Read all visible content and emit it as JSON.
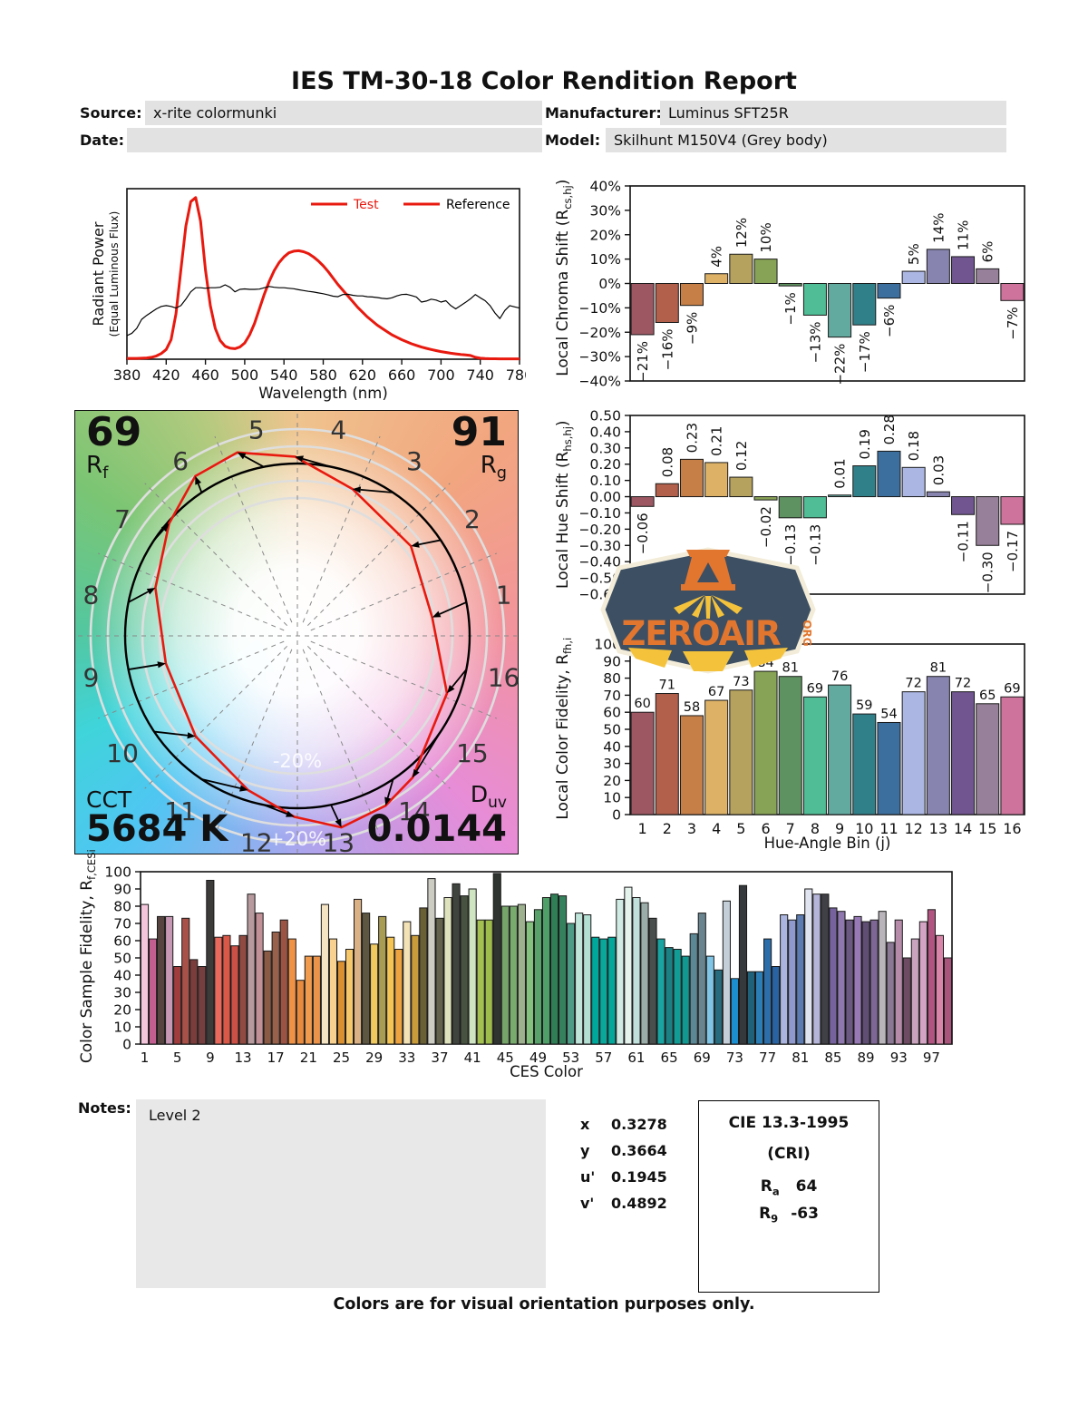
{
  "title": "IES TM-30-18 Color Rendition Report",
  "header": {
    "source_label": "Source:",
    "source_value": "x-rite colormunki",
    "date_label": "Date:",
    "date_value": "",
    "manufacturer_label": "Manufacturer:",
    "manufacturer_value": "Luminus SFT25R",
    "model_label": "Model:",
    "model_value": "Skilhunt M150V4 (Grey body)"
  },
  "colors": {
    "test_red": "#e8190f",
    "reference_black": "#000000",
    "field_bg": "#e2e2e2",
    "bin_colors": [
      "#9d5763",
      "#b25f4c",
      "#c77f48",
      "#ddb266",
      "#b5a25e",
      "#87a355",
      "#5e9260",
      "#50bd96",
      "#62aaa0",
      "#30808a",
      "#3d6f9e",
      "#abb6e3",
      "#8784af",
      "#715590",
      "#978099",
      "#cd739c"
    ]
  },
  "spd": {
    "ylabel_line1": "Radiant Power",
    "ylabel_line2": "(Equal Luminous Flux)",
    "xlabel": "Wavelength (nm)",
    "legend_test": "Test",
    "legend_reference": "Reference"
  },
  "chroma": {
    "ylabel_main": "Local Chroma Shift (R",
    "ylabel_sub": "cs,hj",
    "ylabel_close": ")"
  },
  "hue": {
    "ylabel_main": "Local Hue Shift (R",
    "ylabel_sub": "hs,hj",
    "ylabel_close": ")"
  },
  "fidelity": {
    "ylabel_main": "Local Color Fidelity, R",
    "ylabel_sub": "fh,i",
    "xlabel": "Hue-Angle Bin (j)"
  },
  "ces": {
    "ylabel_main": "Color Sample Fidelity, R",
    "ylabel_sub": "f,CESi",
    "xlabel": "CES Color"
  },
  "cvg": {
    "rf_value": "69",
    "rf_label": "R",
    "rf_sub": "f",
    "rg_value": "91",
    "rg_label": "R",
    "rg_sub": "g",
    "cct_label": "CCT",
    "cct_value": "5684 K",
    "duv_label": "D",
    "duv_sub": "uv",
    "duv_value": "0.0144",
    "inner_ring_label": "-20%",
    "outer_ring_label": "+20%",
    "bin_numbers": [
      1,
      2,
      3,
      4,
      5,
      6,
      7,
      8,
      9,
      10,
      11,
      12,
      13,
      14,
      15,
      16
    ]
  },
  "logo": {
    "wordmark": "ZEROAIR",
    "org": "ORG"
  },
  "notes": {
    "label": "Notes:",
    "value": "Level 2"
  },
  "chromaticity": {
    "rows": [
      {
        "key": "x",
        "value": "0.3278"
      },
      {
        "key": "y",
        "value": "0.3664"
      },
      {
        "key": "u'",
        "value": "0.1945"
      },
      {
        "key": "v'",
        "value": "0.4892"
      }
    ]
  },
  "cie": {
    "title": "CIE 13.3-1995",
    "subtitle": "(CRI)",
    "ra_label": "R",
    "ra_sub": "a",
    "ra_value": "64",
    "r9_label": "R",
    "r9_sub": "9",
    "r9_value": "-63"
  },
  "footer": "Colors are for visual orientation purposes only.",
  "chart_data": [
    {
      "id": "spd",
      "type": "line",
      "title": "",
      "xlabel": "Wavelength (nm)",
      "ylabel": "Radiant Power (Equal Luminous Flux)",
      "xlim": [
        380,
        780
      ],
      "x_ticks": [
        380,
        420,
        460,
        500,
        540,
        580,
        620,
        660,
        700,
        740,
        780
      ],
      "x_start": 380,
      "x_step": 5,
      "y_display_max": 1.05,
      "series": [
        {
          "name": "Test",
          "color": "#e8190f",
          "width": 3,
          "y": [
            0.005,
            0.005,
            0.005,
            0.006,
            0.008,
            0.012,
            0.02,
            0.035,
            0.06,
            0.12,
            0.28,
            0.55,
            0.82,
            0.97,
            0.995,
            0.85,
            0.55,
            0.33,
            0.19,
            0.115,
            0.08,
            0.068,
            0.065,
            0.075,
            0.1,
            0.15,
            0.22,
            0.31,
            0.4,
            0.48,
            0.545,
            0.595,
            0.63,
            0.655,
            0.665,
            0.668,
            0.662,
            0.65,
            0.63,
            0.605,
            0.575,
            0.54,
            0.5,
            0.46,
            0.425,
            0.39,
            0.355,
            0.32,
            0.29,
            0.26,
            0.235,
            0.21,
            0.19,
            0.17,
            0.15,
            0.135,
            0.12,
            0.107,
            0.095,
            0.085,
            0.075,
            0.067,
            0.06,
            0.053,
            0.047,
            0.042,
            0.037,
            0.033,
            0.029,
            0.026,
            0.023,
            0.012,
            0.006,
            0.004,
            0.003,
            0.003,
            0.002,
            0.002,
            0.002,
            0.002,
            0.002
          ]
        },
        {
          "name": "Reference",
          "color": "#000000",
          "width": 1.2,
          "y": [
            0.145,
            0.16,
            0.19,
            0.245,
            0.27,
            0.29,
            0.31,
            0.325,
            0.33,
            0.325,
            0.315,
            0.33,
            0.37,
            0.415,
            0.44,
            0.44,
            0.437,
            0.44,
            0.44,
            0.443,
            0.458,
            0.443,
            0.415,
            0.43,
            0.433,
            0.43,
            0.43,
            0.432,
            0.44,
            0.448,
            0.443,
            0.44,
            0.44,
            0.437,
            0.434,
            0.428,
            0.423,
            0.418,
            0.414,
            0.408,
            0.403,
            0.396,
            0.388,
            0.385,
            0.398,
            0.4,
            0.394,
            0.39,
            0.39,
            0.385,
            0.383,
            0.38,
            0.375,
            0.372,
            0.378,
            0.39,
            0.398,
            0.4,
            0.392,
            0.383,
            0.352,
            0.358,
            0.37,
            0.364,
            0.352,
            0.36,
            0.33,
            0.31,
            0.33,
            0.35,
            0.372,
            0.398,
            0.378,
            0.36,
            0.33,
            0.285,
            0.25,
            0.3,
            0.33,
            0.322,
            0.315
          ]
        }
      ]
    },
    {
      "id": "chroma_shift",
      "type": "bar",
      "ylabel": "Local Chroma Shift (Rcs,hj)",
      "ylim": [
        -40,
        40
      ],
      "categories": [
        1,
        2,
        3,
        4,
        5,
        6,
        7,
        8,
        9,
        10,
        11,
        12,
        13,
        14,
        15,
        16
      ],
      "values": [
        -21,
        -16,
        -9,
        4,
        12,
        10,
        -1,
        -13,
        -22,
        -17,
        -6,
        5,
        14,
        11,
        6,
        -7
      ],
      "labels": [
        "−21%",
        "−16%",
        "−9%",
        "4%",
        "12%",
        "10%",
        "−1%",
        "−13%",
        "−22%",
        "−17%",
        "−6%",
        "5%",
        "14%",
        "11%",
        "6%",
        "−7%"
      ],
      "ytick_values": [
        40,
        30,
        20,
        10,
        0,
        -10,
        -20,
        -30,
        -40
      ],
      "ytick_labels": [
        "40%",
        "30%",
        "20%",
        "10%",
        "0%",
        "−10%",
        "−20%",
        "−30%",
        "−40%"
      ]
    },
    {
      "id": "hue_shift",
      "type": "bar",
      "ylabel": "Local Hue Shift (Rhs,hj)",
      "ylim": [
        -0.6,
        0.5
      ],
      "categories": [
        1,
        2,
        3,
        4,
        5,
        6,
        7,
        8,
        9,
        10,
        11,
        12,
        13,
        14,
        15,
        16
      ],
      "values": [
        -0.06,
        0.08,
        0.23,
        0.21,
        0.12,
        -0.02,
        -0.13,
        -0.13,
        0.01,
        0.19,
        0.28,
        0.18,
        0.03,
        -0.11,
        -0.3,
        -0.17
      ],
      "labels": [
        "−0.06",
        "0.08",
        "0.23",
        "0.21",
        "0.12",
        "−0.02",
        "−0.13",
        "−0.13",
        "0.01",
        "0.19",
        "0.28",
        "0.18",
        "0.03",
        "−0.11",
        "−0.30",
        "−0.17"
      ],
      "ytick_values": [
        0.5,
        0.4,
        0.3,
        0.2,
        0.1,
        0,
        -0.1,
        -0.2,
        -0.3,
        -0.4,
        -0.5,
        -0.6
      ],
      "ytick_labels": [
        "0.50",
        "0.40",
        "0.30",
        "0.20",
        "0.10",
        "0.00",
        "−0.10",
        "−0.20",
        "−0.30",
        "−0.40",
        "−0.50",
        "−0.60"
      ]
    },
    {
      "id": "local_fidelity",
      "type": "bar",
      "ylabel": "Local Color Fidelity, Rfh,i",
      "xlabel": "Hue-Angle Bin (j)",
      "ylim": [
        0,
        100
      ],
      "categories": [
        1,
        2,
        3,
        4,
        5,
        6,
        7,
        8,
        9,
        10,
        11,
        12,
        13,
        14,
        15,
        16
      ],
      "values": [
        60,
        71,
        58,
        67,
        73,
        84,
        81,
        69,
        76,
        59,
        54,
        72,
        81,
        72,
        65,
        69
      ],
      "labels": [
        "60",
        "71",
        "58",
        "67",
        "73",
        "84",
        "81",
        "69",
        "76",
        "59",
        "54",
        "72",
        "81",
        "72",
        "65",
        "69"
      ],
      "ytick_values": [
        100,
        90,
        80,
        70,
        60,
        50,
        40,
        30,
        20,
        10,
        0
      ],
      "ytick_labels": [
        "100",
        "90",
        "80",
        "70",
        "60",
        "50",
        "40",
        "30",
        "20",
        "10",
        "0"
      ]
    },
    {
      "id": "ces_fidelity",
      "type": "bar",
      "ylabel": "Color Sample Fidelity, Rf,CESi",
      "xlabel": "CES Color",
      "ylim": [
        0,
        100
      ],
      "x_tick_labels": [
        1,
        5,
        9,
        13,
        17,
        21,
        25,
        29,
        33,
        37,
        41,
        45,
        49,
        53,
        57,
        61,
        65,
        69,
        73,
        77,
        81,
        85,
        89,
        93,
        97
      ],
      "values": [
        81,
        61,
        74,
        74,
        45,
        73,
        49,
        45,
        95,
        62,
        63,
        57,
        63,
        87,
        76,
        54,
        65,
        72,
        61,
        37,
        51,
        51,
        81,
        61,
        48,
        55,
        84,
        76,
        58,
        74,
        62,
        55,
        71,
        63,
        79,
        96,
        73,
        85,
        93,
        86,
        90,
        72,
        72,
        99,
        80,
        80,
        81,
        71,
        78,
        85,
        87,
        86,
        70,
        76,
        75,
        62,
        61,
        62,
        84,
        91,
        85,
        82,
        73,
        61,
        56,
        55,
        51,
        64,
        76,
        51,
        43,
        83,
        38,
        92,
        42,
        42,
        61,
        45,
        75,
        72,
        75,
        90,
        87,
        87,
        79,
        77,
        72,
        74,
        71,
        72,
        77,
        59,
        72,
        50,
        61,
        71,
        78,
        63,
        50
      ],
      "bar_colors": [
        "#f3c6dc",
        "#c25f90",
        "#564440",
        "#c698b4",
        "#a03c3c",
        "#a85148",
        "#7b3d3c",
        "#753f3f",
        "#3d3a3a",
        "#e9695c",
        "#da5848",
        "#cc5045",
        "#8f4b42",
        "#b79a9e",
        "#c29097",
        "#8a5a44",
        "#97614b",
        "#9b5344",
        "#f09246",
        "#e98b3d",
        "#f19b4f",
        "#eb9449",
        "#f5e4c4",
        "#f8d08f",
        "#da9030",
        "#f4c86b",
        "#dab185",
        "#5d5741",
        "#f1ca5f",
        "#a89b53",
        "#f4c554",
        "#eda440",
        "#f2e2b5",
        "#c89b3b",
        "#6a6036",
        "#cdccc3",
        "#62614b",
        "#dfe3bd",
        "#40443e",
        "#475340",
        "#cfe4c1",
        "#a4c050",
        "#9dbc4b",
        "#2f3431",
        "#75a569",
        "#7aab6e",
        "#9db18f",
        "#84c17e",
        "#59a16b",
        "#4f9f69",
        "#2f7e56",
        "#36815d",
        "#4e9b87",
        "#c0e4da",
        "#b3dfd3",
        "#00a79b",
        "#0aa79b",
        "#03a89b",
        "#d0ebe3",
        "#e5f3ed",
        "#c0e0dc",
        "#9bada8",
        "#484f4c",
        "#19a4a1",
        "#1c8083",
        "#119c95",
        "#109891",
        "#5c8794",
        "#69848e",
        "#80c5e5",
        "#266c7e",
        "#c4ced8",
        "#1c8fd1",
        "#36393c",
        "#1e6178",
        "#2b7eb5",
        "#2b6ea9",
        "#2963a3",
        "#aab4de",
        "#9099cd",
        "#5b7bb1",
        "#e0e3f0",
        "#b5b5d9",
        "#404047",
        "#76629c",
        "#8e78ae",
        "#6c5981",
        "#9779b5",
        "#604e74",
        "#7e6795",
        "#b8b4b9",
        "#8b7894",
        "#b58ba9",
        "#6f4b63",
        "#caa4be",
        "#d4a4c4",
        "#b15481",
        "#d985a9",
        "#a9547b"
      ],
      "ytick_values": [
        100,
        90,
        80,
        70,
        60,
        50,
        40,
        30,
        20,
        10,
        0
      ],
      "ytick_labels": [
        "100",
        "90",
        "80",
        "70",
        "60",
        "50",
        "40",
        "30",
        "20",
        "10",
        "0"
      ]
    }
  ]
}
